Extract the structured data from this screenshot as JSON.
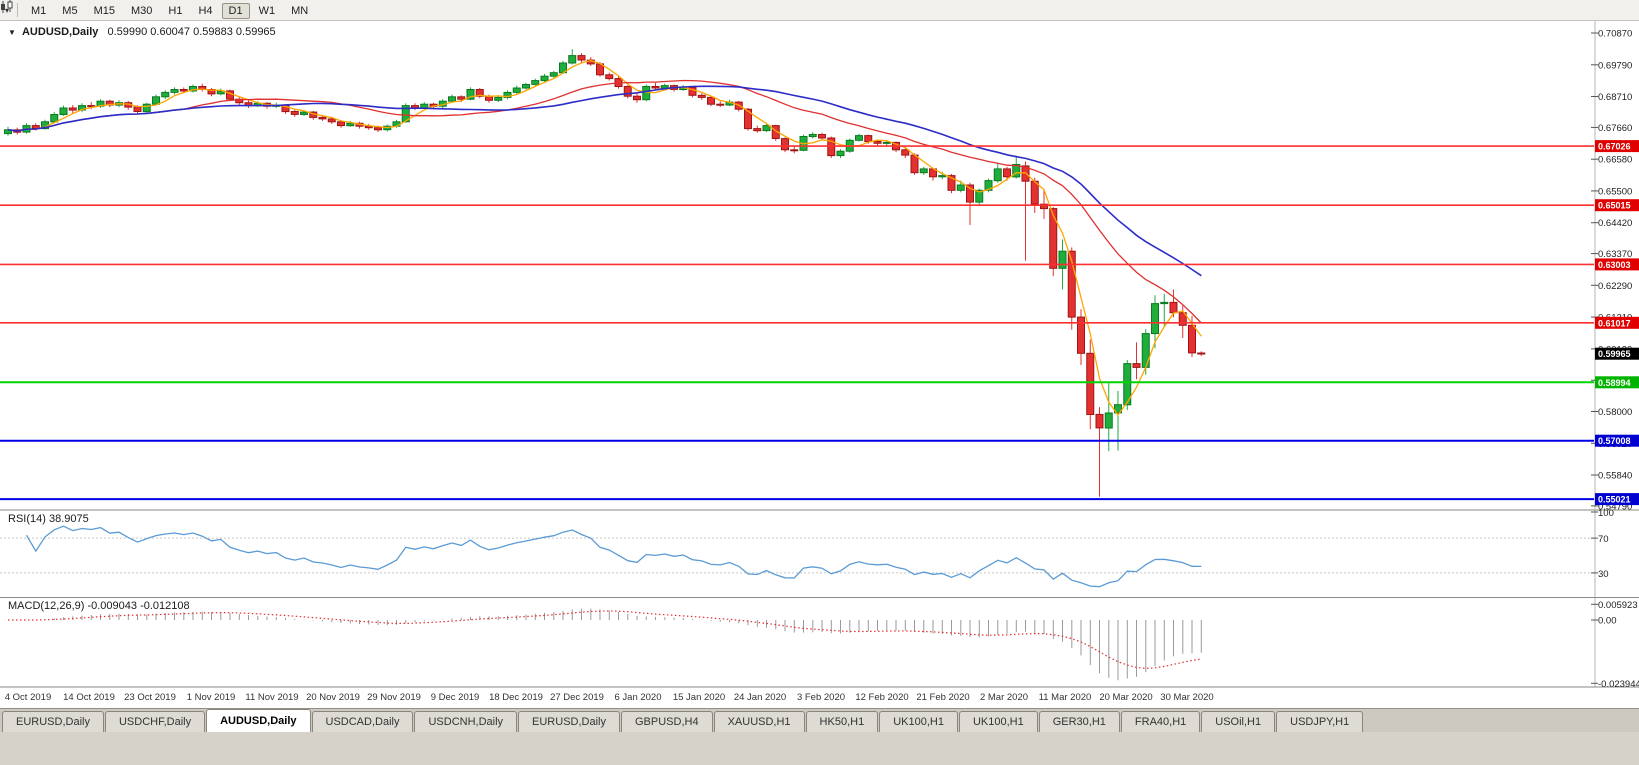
{
  "toolbar": {
    "timeframes": [
      "M1",
      "M5",
      "M15",
      "M30",
      "H1",
      "H4",
      "D1",
      "W1",
      "MN"
    ],
    "active_timeframe": "D1"
  },
  "chart": {
    "symbol_title": "AUDUSD,Daily",
    "ohlc": "0.59990 0.60047 0.59883 0.59965",
    "colors": {
      "bull": "#1fae3c",
      "bull_edge": "#0a7a22",
      "bear": "#e33030",
      "bear_edge": "#9e1515",
      "background": "#ffffff"
    },
    "price_axis_labels": [
      "0.70870",
      "0.69790",
      "0.68710",
      "0.67660",
      "0.66580",
      "0.65500",
      "0.64420",
      "0.63370",
      "0.62290",
      "0.61210",
      "0.60130",
      "0.59060",
      "0.58000",
      "0.56920",
      "0.55840",
      "0.54790"
    ],
    "hlines": [
      {
        "value": 0.67026,
        "label": "0.67026",
        "color": "#ff3030",
        "box": "#e00000",
        "w": 1.6,
        "line": true
      },
      {
        "value": 0.65015,
        "label": "0.65015",
        "color": "#ff3030",
        "box": "#e00000",
        "w": 1.6,
        "line": true
      },
      {
        "value": 0.63003,
        "label": "0.63003",
        "color": "#ff3030",
        "box": "#e00000",
        "w": 1.6,
        "line": true
      },
      {
        "value": 0.61017,
        "label": "0.61017",
        "color": "#ff3030",
        "box": "#e00000",
        "w": 1.6,
        "line": true
      },
      {
        "value": 0.59965,
        "label": "0.59965",
        "color": "#000000",
        "box": "#000000",
        "w": 1,
        "line": false
      },
      {
        "value": 0.58994,
        "label": "0.58994",
        "color": "#00d400",
        "box": "#00b400",
        "w": 2,
        "line": true
      },
      {
        "value": 0.57008,
        "label": "0.57008",
        "color": "#0000e8",
        "box": "#0000d0",
        "w": 2,
        "line": true
      },
      {
        "value": 0.55021,
        "label": "0.55021",
        "color": "#0000e8",
        "box": "#0000d0",
        "w": 2,
        "line": true
      }
    ],
    "mas": [
      {
        "name": "ma-fast",
        "period": 4,
        "color": "#ffa500",
        "width": 1.3
      },
      {
        "name": "ma-mid",
        "period": 20,
        "color": "#e03030",
        "width": 1.3
      },
      {
        "name": "ma-slow",
        "period": 30,
        "color": "#2c2cc8",
        "width": 1.6
      }
    ],
    "candles": [
      [
        0.6745,
        0.6768,
        0.6738,
        0.6758
      ],
      [
        0.6758,
        0.6765,
        0.6742,
        0.675
      ],
      [
        0.675,
        0.678,
        0.6745,
        0.6772
      ],
      [
        0.6772,
        0.678,
        0.6755,
        0.6762
      ],
      [
        0.6762,
        0.6792,
        0.6758,
        0.6785
      ],
      [
        0.6785,
        0.6818,
        0.678,
        0.681
      ],
      [
        0.681,
        0.684,
        0.6805,
        0.6832
      ],
      [
        0.6832,
        0.6842,
        0.6815,
        0.6825
      ],
      [
        0.6825,
        0.6848,
        0.6818,
        0.684
      ],
      [
        0.684,
        0.6852,
        0.6828,
        0.6838
      ],
      [
        0.6838,
        0.6862,
        0.6832,
        0.6855
      ],
      [
        0.6855,
        0.686,
        0.6835,
        0.6842
      ],
      [
        0.6842,
        0.6858,
        0.6835,
        0.685
      ],
      [
        0.685,
        0.6856,
        0.6826,
        0.6835
      ],
      [
        0.6835,
        0.6842,
        0.6812,
        0.682
      ],
      [
        0.682,
        0.685,
        0.6815,
        0.6845
      ],
      [
        0.6845,
        0.6878,
        0.684,
        0.687
      ],
      [
        0.687,
        0.6892,
        0.6862,
        0.6885
      ],
      [
        0.6885,
        0.6902,
        0.6878,
        0.6895
      ],
      [
        0.6895,
        0.6902,
        0.6882,
        0.689
      ],
      [
        0.689,
        0.6912,
        0.6885,
        0.6905
      ],
      [
        0.6905,
        0.6915,
        0.6888,
        0.6895
      ],
      [
        0.6895,
        0.69,
        0.6872,
        0.688
      ],
      [
        0.688,
        0.6898,
        0.6875,
        0.689
      ],
      [
        0.689,
        0.6895,
        0.6855,
        0.6862
      ],
      [
        0.6862,
        0.687,
        0.6842,
        0.685
      ],
      [
        0.685,
        0.6858,
        0.6832,
        0.684
      ],
      [
        0.684,
        0.6855,
        0.6835,
        0.6848
      ],
      [
        0.6848,
        0.6852,
        0.683,
        0.6838
      ],
      [
        0.6838,
        0.685,
        0.6832,
        0.6842
      ],
      [
        0.6842,
        0.6845,
        0.6812,
        0.682
      ],
      [
        0.682,
        0.6828,
        0.6802,
        0.681
      ],
      [
        0.681,
        0.6825,
        0.6805,
        0.6818
      ],
      [
        0.6818,
        0.6822,
        0.6792,
        0.68
      ],
      [
        0.68,
        0.6808,
        0.6788,
        0.6795
      ],
      [
        0.6795,
        0.6802,
        0.6778,
        0.6785
      ],
      [
        0.6785,
        0.679,
        0.6765,
        0.6772
      ],
      [
        0.6772,
        0.6788,
        0.6768,
        0.678
      ],
      [
        0.678,
        0.6785,
        0.6762,
        0.677
      ],
      [
        0.677,
        0.6778,
        0.6758,
        0.6765
      ],
      [
        0.6765,
        0.6772,
        0.675,
        0.6758
      ],
      [
        0.6758,
        0.6776,
        0.6752,
        0.677
      ],
      [
        0.677,
        0.6792,
        0.6765,
        0.6785
      ],
      [
        0.6785,
        0.6848,
        0.6782,
        0.684
      ],
      [
        0.684,
        0.6848,
        0.6825,
        0.6832
      ],
      [
        0.6832,
        0.6852,
        0.6828,
        0.6845
      ],
      [
        0.6845,
        0.685,
        0.683,
        0.6838
      ],
      [
        0.6838,
        0.6862,
        0.6832,
        0.6855
      ],
      [
        0.6855,
        0.6878,
        0.685,
        0.687
      ],
      [
        0.687,
        0.6875,
        0.6852,
        0.6862
      ],
      [
        0.6862,
        0.6902,
        0.6858,
        0.6895
      ],
      [
        0.6895,
        0.69,
        0.6865,
        0.6872
      ],
      [
        0.6872,
        0.6878,
        0.685,
        0.6858
      ],
      [
        0.6858,
        0.6875,
        0.6852,
        0.6868
      ],
      [
        0.6868,
        0.6892,
        0.6862,
        0.6885
      ],
      [
        0.6885,
        0.6908,
        0.688,
        0.69
      ],
      [
        0.69,
        0.6918,
        0.6895,
        0.6912
      ],
      [
        0.6912,
        0.6932,
        0.6908,
        0.6925
      ],
      [
        0.6925,
        0.6948,
        0.692,
        0.694
      ],
      [
        0.694,
        0.6958,
        0.6935,
        0.6952
      ],
      [
        0.6952,
        0.6992,
        0.6948,
        0.6985
      ],
      [
        0.6985,
        0.7032,
        0.698,
        0.701
      ],
      [
        0.701,
        0.7018,
        0.6985,
        0.6995
      ],
      [
        0.6995,
        0.7005,
        0.6975,
        0.6982
      ],
      [
        0.6982,
        0.6988,
        0.6938,
        0.6945
      ],
      [
        0.6945,
        0.6952,
        0.6925,
        0.6932
      ],
      [
        0.6932,
        0.694,
        0.6898,
        0.6905
      ],
      [
        0.6905,
        0.691,
        0.6865,
        0.6872
      ],
      [
        0.6872,
        0.6882,
        0.685,
        0.686
      ],
      [
        0.686,
        0.6912,
        0.6855,
        0.6905
      ],
      [
        0.6905,
        0.6918,
        0.6892,
        0.69
      ],
      [
        0.69,
        0.6915,
        0.6895,
        0.6908
      ],
      [
        0.6908,
        0.6912,
        0.6888,
        0.6895
      ],
      [
        0.6895,
        0.691,
        0.689,
        0.6902
      ],
      [
        0.6902,
        0.6905,
        0.6868,
        0.6875
      ],
      [
        0.6875,
        0.6882,
        0.686,
        0.6868
      ],
      [
        0.6868,
        0.6872,
        0.6838,
        0.6845
      ],
      [
        0.6845,
        0.6855,
        0.6835,
        0.6842
      ],
      [
        0.6842,
        0.686,
        0.6838,
        0.6852
      ],
      [
        0.6852,
        0.6856,
        0.682,
        0.6828
      ],
      [
        0.6828,
        0.6832,
        0.6755,
        0.6762
      ],
      [
        0.6762,
        0.6772,
        0.6748,
        0.6755
      ],
      [
        0.6755,
        0.6778,
        0.675,
        0.6772
      ],
      [
        0.6772,
        0.6775,
        0.672,
        0.6728
      ],
      [
        0.6728,
        0.6732,
        0.6682,
        0.669
      ],
      [
        0.669,
        0.6702,
        0.6678,
        0.6688
      ],
      [
        0.6688,
        0.6742,
        0.6685,
        0.6735
      ],
      [
        0.6735,
        0.675,
        0.6728,
        0.6742
      ],
      [
        0.6742,
        0.6748,
        0.6722,
        0.673
      ],
      [
        0.673,
        0.6735,
        0.6662,
        0.667
      ],
      [
        0.667,
        0.6692,
        0.6662,
        0.6685
      ],
      [
        0.6685,
        0.6728,
        0.668,
        0.6722
      ],
      [
        0.6722,
        0.6745,
        0.6718,
        0.6738
      ],
      [
        0.6738,
        0.6742,
        0.671,
        0.6718
      ],
      [
        0.6718,
        0.6725,
        0.6705,
        0.6712
      ],
      [
        0.6712,
        0.6722,
        0.6702,
        0.6715
      ],
      [
        0.6715,
        0.6718,
        0.6682,
        0.669
      ],
      [
        0.669,
        0.6695,
        0.6662,
        0.6672
      ],
      [
        0.6672,
        0.6678,
        0.6605,
        0.6612
      ],
      [
        0.6612,
        0.6632,
        0.6605,
        0.6625
      ],
      [
        0.6625,
        0.6628,
        0.6585,
        0.6598
      ],
      [
        0.6598,
        0.6615,
        0.659,
        0.6602
      ],
      [
        0.6602,
        0.6608,
        0.6542,
        0.6552
      ],
      [
        0.6552,
        0.6585,
        0.6545,
        0.657
      ],
      [
        0.657,
        0.6578,
        0.6434,
        0.6512
      ],
      [
        0.6512,
        0.6558,
        0.65,
        0.6552
      ],
      [
        0.6552,
        0.6592,
        0.6545,
        0.6585
      ],
      [
        0.6585,
        0.6645,
        0.6578,
        0.6625
      ],
      [
        0.6625,
        0.6632,
        0.6585,
        0.6598
      ],
      [
        0.6598,
        0.667,
        0.6592,
        0.664
      ],
      [
        0.6635,
        0.665,
        0.6313,
        0.6583
      ],
      [
        0.6583,
        0.6595,
        0.6475,
        0.6505
      ],
      [
        0.6505,
        0.6555,
        0.6455,
        0.649
      ],
      [
        0.649,
        0.6495,
        0.626,
        0.6287
      ],
      [
        0.6287,
        0.6385,
        0.6215,
        0.6345
      ],
      [
        0.6345,
        0.6358,
        0.6078,
        0.6121
      ],
      [
        0.6121,
        0.6148,
        0.5958,
        0.5998
      ],
      [
        0.5998,
        0.6045,
        0.574,
        0.579
      ],
      [
        0.579,
        0.5815,
        0.551,
        0.5744
      ],
      [
        0.5744,
        0.59,
        0.5665,
        0.5795
      ],
      [
        0.5795,
        0.587,
        0.5667,
        0.5823
      ],
      [
        0.5823,
        0.5975,
        0.5805,
        0.5963
      ],
      [
        0.5963,
        0.6035,
        0.591,
        0.595
      ],
      [
        0.595,
        0.608,
        0.5925,
        0.6065
      ],
      [
        0.6065,
        0.6195,
        0.6015,
        0.6167
      ],
      [
        0.6167,
        0.62,
        0.609,
        0.6171
      ],
      [
        0.6171,
        0.6215,
        0.612,
        0.6136
      ],
      [
        0.6136,
        0.616,
        0.605,
        0.6093
      ],
      [
        0.6093,
        0.6125,
        0.5985,
        0.5999
      ],
      [
        0.5999,
        0.60047,
        0.59883,
        0.59965
      ]
    ],
    "time_labels": [
      "4 Oct 2019",
      "14 Oct 2019",
      "23 Oct 2019",
      "1 Nov 2019",
      "11 Nov 2019",
      "20 Nov 2019",
      "29 Nov 2019",
      "9 Dec 2019",
      "18 Dec 2019",
      "27 Dec 2019",
      "6 Jan 2020",
      "15 Jan 2020",
      "24 Jan 2020",
      "3 Feb 2020",
      "12 Feb 2020",
      "21 Feb 2020",
      "2 Mar 2020",
      "11 Mar 2020",
      "20 Mar 2020",
      "30 Mar 2020"
    ]
  },
  "rsi": {
    "label": "RSI(14) 38.9075",
    "period": 14,
    "line_color": "#5b9bd5",
    "level_line_color": "#c8c8c8",
    "axis_labels": [
      {
        "v": 100,
        "t": "100"
      },
      {
        "v": 70,
        "t": "70"
      },
      {
        "v": 30,
        "t": "30"
      }
    ],
    "levels": [
      70,
      30
    ]
  },
  "macd": {
    "label": "MACD(12,26,9) -0.009043 -0.012108",
    "hist_color": "#9a9a9a",
    "signal_color": "#e03030",
    "axis_labels": [
      {
        "v": 0.005923,
        "t": "0.005923"
      },
      {
        "v": 0,
        "t": "0.00"
      },
      {
        "v": -0.023944,
        "t": "-0.023944"
      }
    ]
  },
  "tabs": {
    "active_index": 2,
    "items": [
      "EURUSD,Daily",
      "USDCHF,Daily",
      "AUDUSD,Daily",
      "USDCAD,Daily",
      "USDCNH,Daily",
      "EURUSD,Daily",
      "GBPUSD,H4",
      "XAUUSD,H1",
      "HK50,H1",
      "UK100,H1",
      "UK100,H1",
      "GER30,H1",
      "FRA40,H1",
      "USOil,H1",
      "USDJPY,H1"
    ]
  }
}
